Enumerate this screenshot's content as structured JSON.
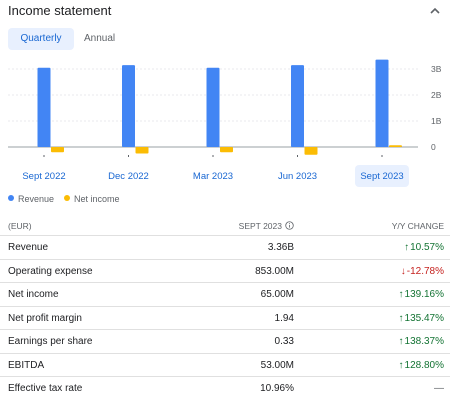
{
  "header": {
    "title": "Income statement"
  },
  "tabs": [
    {
      "label": "Quarterly",
      "active": true
    },
    {
      "label": "Annual",
      "active": false
    }
  ],
  "colors": {
    "revenue": "#4285f4",
    "net_income": "#fbbc04",
    "positive": "#137333",
    "negative": "#c5221f",
    "tab_active_bg": "#e8f0fe"
  },
  "chart_data": {
    "type": "bar",
    "categories": [
      "Sept 2022",
      "Dec 2022",
      "Mar 2023",
      "Jun 2023",
      "Sept 2023"
    ],
    "selected_category": "Sept 2023",
    "series": [
      {
        "name": "Revenue",
        "values": [
          3.05,
          3.15,
          3.05,
          3.15,
          3.36
        ]
      },
      {
        "name": "Net income",
        "values": [
          -0.2,
          -0.25,
          -0.2,
          -0.3,
          0.065
        ]
      }
    ],
    "y_ticks": [
      "3B",
      "2B",
      "1B",
      "0"
    ],
    "y_tick_values": [
      3,
      2,
      1,
      0
    ],
    "ylim": [
      -0.35,
      3.6
    ],
    "grid": true,
    "legend_position": "bottom-left"
  },
  "legend": [
    {
      "label": "Revenue",
      "icon": "revenue-dot-icon"
    },
    {
      "label": "Net income",
      "icon": "net-income-dot-icon"
    }
  ],
  "table": {
    "header": {
      "currency": "(EUR)",
      "period": "SEPT 2023",
      "change": "Y/Y CHANGE"
    },
    "rows": [
      {
        "label": "Revenue",
        "value": "3.36B",
        "change": "10.57%",
        "direction": "up"
      },
      {
        "label": "Operating expense",
        "value": "853.00M",
        "change": "-12.78%",
        "direction": "down"
      },
      {
        "label": "Net income",
        "value": "65.00M",
        "change": "139.16%",
        "direction": "up"
      },
      {
        "label": "Net profit margin",
        "value": "1.94",
        "change": "135.47%",
        "direction": "up"
      },
      {
        "label": "Earnings per share",
        "value": "0.33",
        "change": "138.37%",
        "direction": "up"
      },
      {
        "label": "EBITDA",
        "value": "53.00M",
        "change": "128.80%",
        "direction": "up"
      },
      {
        "label": "Effective tax rate",
        "value": "10.96%",
        "change": "—",
        "direction": "none"
      }
    ]
  }
}
